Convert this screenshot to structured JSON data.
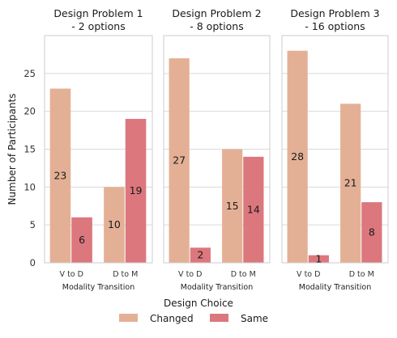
{
  "chart_data": {
    "type": "bar",
    "ylabel": "Number of Participants",
    "ylim": [
      0,
      30
    ],
    "yticks": [
      0,
      5,
      10,
      15,
      20,
      25
    ],
    "grid": true,
    "legend": {
      "title": "Design Choice",
      "placement": "bottom-center",
      "entries": [
        {
          "name": "Changed",
          "color": "#e4b095"
        },
        {
          "name": "Same",
          "color": "#dc777e"
        }
      ]
    },
    "panels": [
      {
        "title_line1": "Design Problem 1",
        "title_line2": "- 2 options",
        "xlabel": "Modality Transition",
        "categories": [
          "V to D",
          "D to M"
        ],
        "series": [
          {
            "name": "Changed",
            "values": [
              23,
              10
            ]
          },
          {
            "name": "Same",
            "values": [
              6,
              19
            ]
          }
        ]
      },
      {
        "title_line1": "Design Problem 2",
        "title_line2": "- 8 options",
        "xlabel": "Modality Transition",
        "categories": [
          "V to D",
          "D to M"
        ],
        "series": [
          {
            "name": "Changed",
            "values": [
              27,
              15
            ]
          },
          {
            "name": "Same",
            "values": [
              2,
              14
            ]
          }
        ]
      },
      {
        "title_line1": "Design Problem 3",
        "title_line2": "- 16 options",
        "xlabel": "Modality Transition",
        "categories": [
          "V to D",
          "D to M"
        ],
        "series": [
          {
            "name": "Changed",
            "values": [
              28,
              21
            ]
          },
          {
            "name": "Same",
            "values": [
              1,
              8
            ]
          }
        ]
      }
    ]
  }
}
